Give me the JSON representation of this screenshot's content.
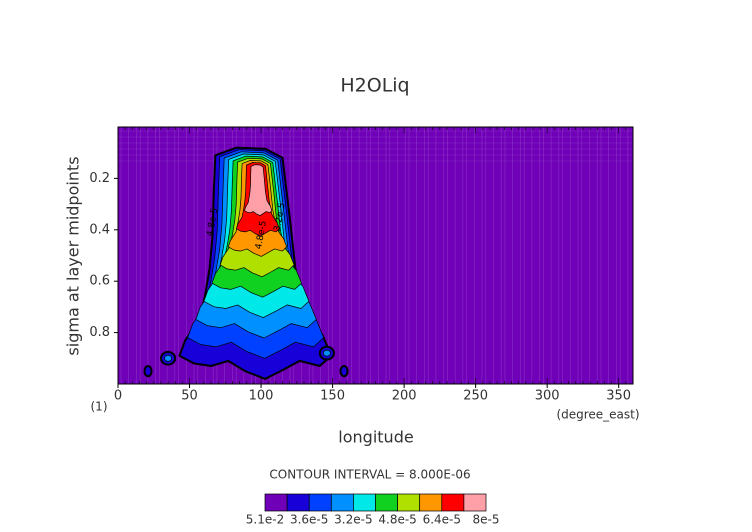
{
  "chart_data": {
    "type": "contour",
    "title": "H2OLiq",
    "x_label": "longitude",
    "x_units": "(degree_east)",
    "y_label": "sigma at layer midpoints",
    "corner_label": "(1)",
    "xlim": [
      0,
      360
    ],
    "xticks": [
      0,
      50,
      100,
      150,
      200,
      250,
      300,
      350
    ],
    "ylim": [
      1,
      0
    ],
    "yticks": [
      0.2,
      0.4,
      0.6,
      0.8
    ],
    "contour_interval_text": "CONTOUR INTERVAL = 8.000E-06",
    "colors": [
      "#7000b8",
      "#1800d8",
      "#0040ff",
      "#0090ff",
      "#00e8e8",
      "#10d020",
      "#b0e000",
      "#ff9800",
      "#ff0000",
      "#ffa0a8"
    ],
    "colorbar_labels": [
      "5.1e-2",
      "3.6e-5",
      "3.2e-5",
      "4.8e-5",
      "6.4e-5",
      "8e-5"
    ],
    "contour_labels": [
      "4.8e-5",
      "3.2e-5",
      "4.8e-5"
    ]
  }
}
